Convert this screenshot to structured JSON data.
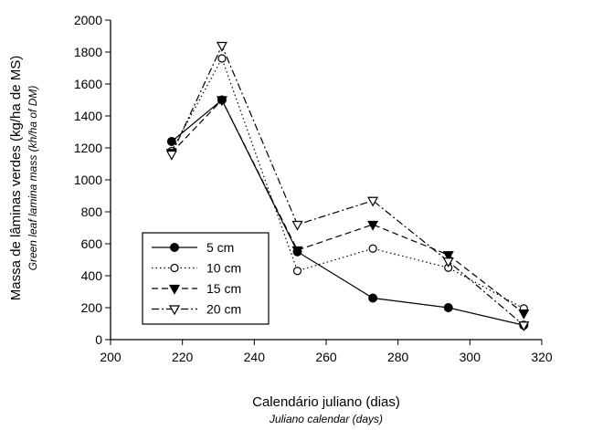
{
  "chart_data": {
    "type": "line",
    "xlabel": "Calendário juliano (dias)",
    "xlabel_en": "Juliano calendar (days)",
    "ylabel": "Massa de lâminas verdes (kg/ha de MS)",
    "ylabel_en": "Green leaf lamina mass (kh/ha of DM)",
    "xlim": [
      200,
      320
    ],
    "ylim": [
      0,
      2000
    ],
    "xticks": [
      200,
      220,
      240,
      260,
      280,
      300,
      320
    ],
    "yticks": [
      0,
      200,
      400,
      600,
      800,
      1000,
      1200,
      1400,
      1600,
      1800,
      2000
    ],
    "grid": false,
    "legend_position": "lower-left",
    "x": [
      217,
      231,
      252,
      273,
      294,
      315
    ],
    "series": [
      {
        "name": "5 cm",
        "marker": "filled-circle",
        "line": "solid",
        "values": [
          1240,
          1500,
          550,
          260,
          200,
          90
        ]
      },
      {
        "name": "10 cm",
        "marker": "open-circle",
        "line": "dotted",
        "values": [
          1180,
          1760,
          430,
          570,
          450,
          195
        ]
      },
      {
        "name": "15 cm",
        "marker": "filled-triangle-down",
        "line": "dashed",
        "values": [
          1170,
          1500,
          560,
          720,
          530,
          165
        ]
      },
      {
        "name": "20 cm",
        "marker": "open-triangle-down",
        "line": "dash-dot",
        "values": [
          1160,
          1840,
          720,
          870,
          490,
          90
        ]
      }
    ]
  }
}
